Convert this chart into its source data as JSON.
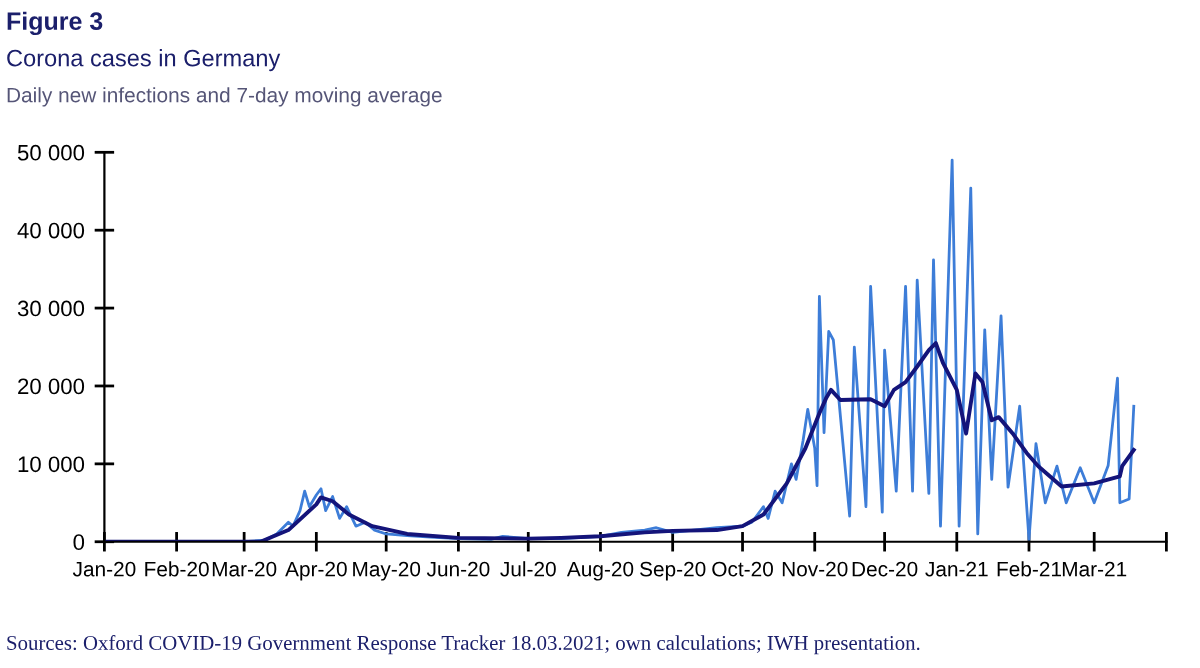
{
  "chart_data": {
    "type": "line",
    "title": "Figure 3",
    "subtitle": "Corona cases in Germany",
    "annotations": [
      "Daily new infections and 7-day moving average",
      "Sources: Oxford COVID-19 Government Response Tracker 18.03.2021; own calculations; IWH presentation."
    ],
    "xlim": [
      "2020-01-01",
      "2021-04-01"
    ],
    "xticks": [
      {
        "value": "2020-01-01",
        "label": "Jan-20"
      },
      {
        "value": "2020-02-01",
        "label": "Feb-20"
      },
      {
        "value": "2020-03-01",
        "label": "Mar-20"
      },
      {
        "value": "2020-04-01",
        "label": "Apr-20"
      },
      {
        "value": "2020-05-01",
        "label": "May-20"
      },
      {
        "value": "2020-06-01",
        "label": "Jun-20"
      },
      {
        "value": "2020-07-01",
        "label": "Jul-20"
      },
      {
        "value": "2020-08-01",
        "label": "Aug-20"
      },
      {
        "value": "2020-09-01",
        "label": "Sep-20"
      },
      {
        "value": "2020-10-01",
        "label": "Oct-20"
      },
      {
        "value": "2020-11-01",
        "label": "Nov-20"
      },
      {
        "value": "2020-12-01",
        "label": "Dec-20"
      },
      {
        "value": "2021-01-01",
        "label": "Jan-21"
      },
      {
        "value": "2021-02-01",
        "label": "Feb-21"
      },
      {
        "value": "2021-03-01",
        "label": "Mar-21"
      },
      {
        "value": "2021-04-01",
        "label": null
      }
    ],
    "ylim": [
      0,
      50000
    ],
    "yticks": [
      0,
      {
        "value": 10000,
        "label": "10 000"
      },
      {
        "value": 20000,
        "label": "20 000"
      },
      {
        "value": 30000,
        "label": "30 000"
      },
      {
        "value": 40000,
        "label": "40 000"
      },
      {
        "value": 50000,
        "label": "50 000"
      }
    ],
    "grid": false,
    "legend": false,
    "marker": "none",
    "line_style": "solid",
    "series": [
      {
        "color": "#3d7dd8",
        "x": [
          "2020-01-01",
          "2020-03-01",
          "2020-03-10",
          "2020-03-15",
          "2020-03-20",
          "2020-03-22",
          "2020-03-25",
          "2020-03-27",
          "2020-03-29",
          "2020-04-01",
          "2020-04-03",
          "2020-04-05",
          "2020-04-08",
          "2020-04-11",
          "2020-04-14",
          "2020-04-18",
          "2020-04-22",
          "2020-04-26",
          "2020-05-01",
          "2020-05-10",
          "2020-05-20",
          "2020-06-01",
          "2020-06-15",
          "2020-06-20",
          "2020-07-01",
          "2020-07-15",
          "2020-08-01",
          "2020-08-10",
          "2020-08-20",
          "2020-08-25",
          "2020-09-01",
          "2020-09-10",
          "2020-09-20",
          "2020-10-01",
          "2020-10-05",
          "2020-10-10",
          "2020-10-12",
          "2020-10-15",
          "2020-10-18",
          "2020-10-22",
          "2020-10-24",
          "2020-10-27",
          "2020-10-29",
          "2020-11-01",
          "2020-11-02",
          "2020-11-03",
          "2020-11-05",
          "2020-11-07",
          "2020-11-09",
          "2020-11-16",
          "2020-11-18",
          "2020-11-23",
          "2020-11-25",
          "2020-11-30",
          "2020-12-01",
          "2020-12-06",
          "2020-12-10",
          "2020-12-13",
          "2020-12-15",
          "2020-12-20",
          "2020-12-22",
          "2020-12-25",
          "2020-12-30",
          "2021-01-02",
          "2021-01-07",
          "2021-01-10",
          "2021-01-13",
          "2021-01-16",
          "2021-01-20",
          "2021-01-23",
          "2021-01-28",
          "2021-02-01",
          "2021-02-04",
          "2021-02-08",
          "2021-02-13",
          "2021-02-17",
          "2021-02-23",
          "2021-03-01",
          "2021-03-07",
          "2021-03-11",
          "2021-03-12",
          "2021-03-16",
          "2021-03-18"
        ],
        "values": [
          0,
          0,
          200,
          1000,
          2500,
          2000,
          4000,
          6500,
          4500,
          6000,
          6800,
          4000,
          5800,
          3000,
          4500,
          2000,
          2500,
          1500,
          1000,
          800,
          600,
          400,
          300,
          700,
          400,
          400,
          700,
          1200,
          1500,
          1800,
          1200,
          1500,
          1800,
          2000,
          2500,
          4500,
          3000,
          6500,
          5000,
          10000,
          8000,
          13000,
          17000,
          12000,
          7200,
          31500,
          14000,
          27000,
          25900,
          3300,
          25000,
          4500,
          32800,
          3800,
          24600,
          6500,
          32800,
          6500,
          33600,
          6200,
          36200,
          2000,
          49000,
          2000,
          45400,
          1000,
          27200,
          8000,
          29000,
          7000,
          17400,
          300,
          12600,
          5000,
          9700,
          5000,
          9500,
          5000,
          9800,
          21000,
          5000,
          5500,
          17400
        ]
      },
      {
        "color": "#14147a",
        "x": [
          "2020-01-01",
          "2020-03-08",
          "2020-03-20",
          "2020-04-01",
          "2020-04-03",
          "2020-04-08",
          "2020-04-15",
          "2020-04-25",
          "2020-05-10",
          "2020-06-01",
          "2020-07-01",
          "2020-07-15",
          "2020-08-01",
          "2020-08-20",
          "2020-09-01",
          "2020-09-20",
          "2020-10-01",
          "2020-10-10",
          "2020-10-20",
          "2020-10-28",
          "2020-11-03",
          "2020-11-06",
          "2020-11-08",
          "2020-11-12",
          "2020-11-25",
          "2020-12-01",
          "2020-12-05",
          "2020-12-10",
          "2020-12-15",
          "2020-12-20",
          "2020-12-23",
          "2020-12-26",
          "2021-01-01",
          "2021-01-05",
          "2021-01-09",
          "2021-01-12",
          "2021-01-16",
          "2021-01-19",
          "2021-01-25",
          "2021-01-31",
          "2021-02-05",
          "2021-02-15",
          "2021-03-01",
          "2021-03-12",
          "2021-03-13",
          "2021-03-18"
        ],
        "values": [
          0,
          0,
          1500,
          4800,
          5700,
          5200,
          3500,
          2000,
          1000,
          500,
          400,
          500,
          700,
          1200,
          1400,
          1500,
          2000,
          3500,
          7500,
          12000,
          16500,
          18500,
          19500,
          18200,
          18300,
          17400,
          19500,
          20500,
          22500,
          24600,
          25500,
          23000,
          19500,
          13900,
          21600,
          20500,
          15600,
          16000,
          13900,
          11400,
          9700,
          7100,
          7500,
          8400,
          9700,
          11800
        ]
      }
    ]
  }
}
